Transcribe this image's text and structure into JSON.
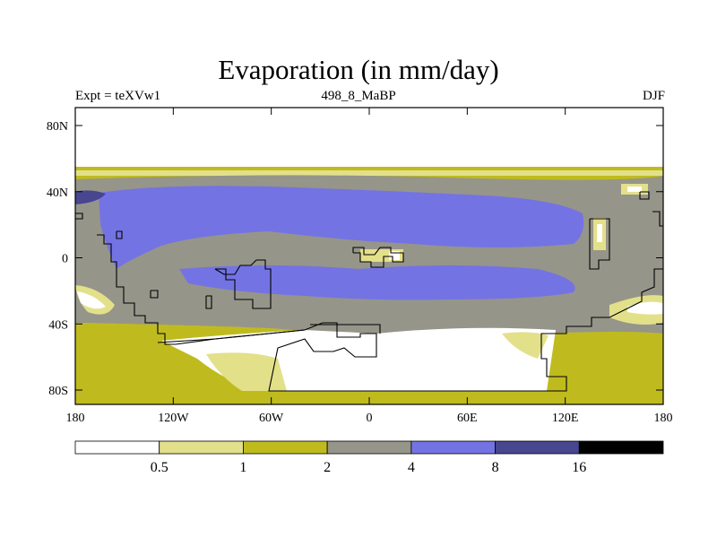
{
  "title": "Evaporation (in mm/day)",
  "subtitle_left": "Expt = teXVw1",
  "subtitle_center": "498_8_MaBP",
  "subtitle_right": "DJF",
  "y_ticks": [
    "80N",
    "40N",
    "0",
    "40S",
    "80S"
  ],
  "x_ticks": [
    "180",
    "120W",
    "60W",
    "0",
    "60E",
    "120E",
    "180"
  ],
  "colorbar": {
    "colors": [
      "#ffffff",
      "#e3e08a",
      "#bfbb1f",
      "#96958a",
      "#7473e3",
      "#47468f",
      "#000000"
    ],
    "labels": [
      "0.5",
      "1",
      "2",
      "4",
      "8",
      "16"
    ]
  }
}
